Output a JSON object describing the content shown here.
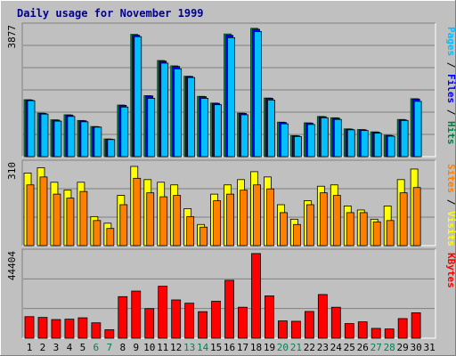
{
  "chart_data": {
    "type": "bar",
    "title": "Daily usage for November 1999",
    "days": [
      "1",
      "2",
      "3",
      "4",
      "5",
      "6",
      "7",
      "8",
      "9",
      "10",
      "11",
      "12",
      "13",
      "14",
      "15",
      "16",
      "17",
      "18",
      "19",
      "20",
      "21",
      "22",
      "23",
      "24",
      "25",
      "26",
      "27",
      "28",
      "29",
      "30",
      "31"
    ],
    "weekend_days": [
      "6",
      "7",
      "13",
      "14",
      "20",
      "21",
      "27",
      "28"
    ],
    "colors": {
      "hits": "#008040",
      "files": "#0000ff",
      "pages": "#00c0ff",
      "visits": "#ffff00",
      "sites": "#ff8000",
      "kbytes": "#ff0000",
      "title": "#00008b",
      "weekend": "#00805a",
      "weekday": "#000000"
    },
    "panels": [
      {
        "id": "top",
        "max_label": "3877",
        "max": 3877,
        "right_labels": [
          {
            "text": "Pages",
            "color": "#00c0ff"
          },
          {
            "text": " / ",
            "color": "#000000"
          },
          {
            "text": "Files",
            "color": "#0000ff"
          },
          {
            "text": " / ",
            "color": "#000000"
          },
          {
            "text": "Hits",
            "color": "#008040"
          }
        ],
        "series": [
          {
            "key": "hits",
            "values": [
              1700,
              1300,
              1100,
              1250,
              1080,
              900,
              530,
              1540,
              3650,
              1820,
              2870,
              2710,
              2400,
              1800,
              1600,
              3660,
              1300,
              3830,
              1750,
              1030,
              630,
              1010,
              1200,
              1160,
              830,
              810,
              740,
              640,
              1110,
              1730,
              0
            ]
          },
          {
            "key": "files",
            "values": [
              1690,
              1290,
              1090,
              1240,
              1070,
              890,
              520,
              1530,
              3620,
              1810,
              2850,
              2690,
              2390,
              1790,
              1590,
              3620,
              1290,
              3800,
              1740,
              1020,
              620,
              1000,
              1190,
              1150,
              820,
              800,
              730,
              630,
              1100,
              1720,
              0
            ]
          },
          {
            "key": "pages",
            "values": [
              1670,
              1270,
              1060,
              1200,
              1040,
              880,
              510,
              1480,
              3580,
              1740,
              2790,
              2620,
              2360,
              1740,
              1550,
              3550,
              1250,
              3730,
              1690,
              980,
              600,
              960,
              1160,
              1110,
              800,
              780,
              700,
              610,
              1080,
              1650,
              0
            ]
          }
        ]
      },
      {
        "id": "mid",
        "max_label": "310",
        "max": 310,
        "right_labels": [
          {
            "text": "Sites",
            "color": "#ff8000"
          },
          {
            "text": " / ",
            "color": "#000000"
          },
          {
            "text": "Visits",
            "color": "#ffff00"
          }
        ],
        "series": [
          {
            "key": "visits",
            "values": [
              275,
              295,
              240,
              210,
              240,
              110,
              85,
              190,
              300,
              250,
              240,
              230,
              140,
              80,
              195,
              230,
              250,
              280,
              260,
              155,
              100,
              170,
              225,
              230,
              150,
              135,
              100,
              150,
              250,
              290,
              0
            ]
          },
          {
            "key": "sites",
            "values": [
              230,
              260,
              195,
              180,
              205,
              95,
              65,
              155,
              255,
              200,
              185,
              190,
              110,
              70,
              170,
              195,
              210,
              230,
              215,
              125,
              80,
              155,
              200,
              190,
              125,
              125,
              90,
              95,
              200,
              220,
              0
            ]
          }
        ]
      },
      {
        "id": "bot",
        "max_label": "44404",
        "max": 44404,
        "right_labels": [
          {
            "text": "KBytes",
            "color": "#ff0000"
          }
        ],
        "series": [
          {
            "key": "kbytes",
            "values": [
              11200,
              10800,
              9700,
              9900,
              10600,
              8000,
              4400,
              21600,
              24500,
              15400,
              27000,
              19900,
              18200,
              13800,
              19200,
              30100,
              16100,
              44000,
              22000,
              9000,
              8800,
              13900,
              22700,
              16100,
              7600,
              8500,
              5100,
              4800,
              10200,
              13200,
              0
            ]
          }
        ]
      }
    ]
  }
}
